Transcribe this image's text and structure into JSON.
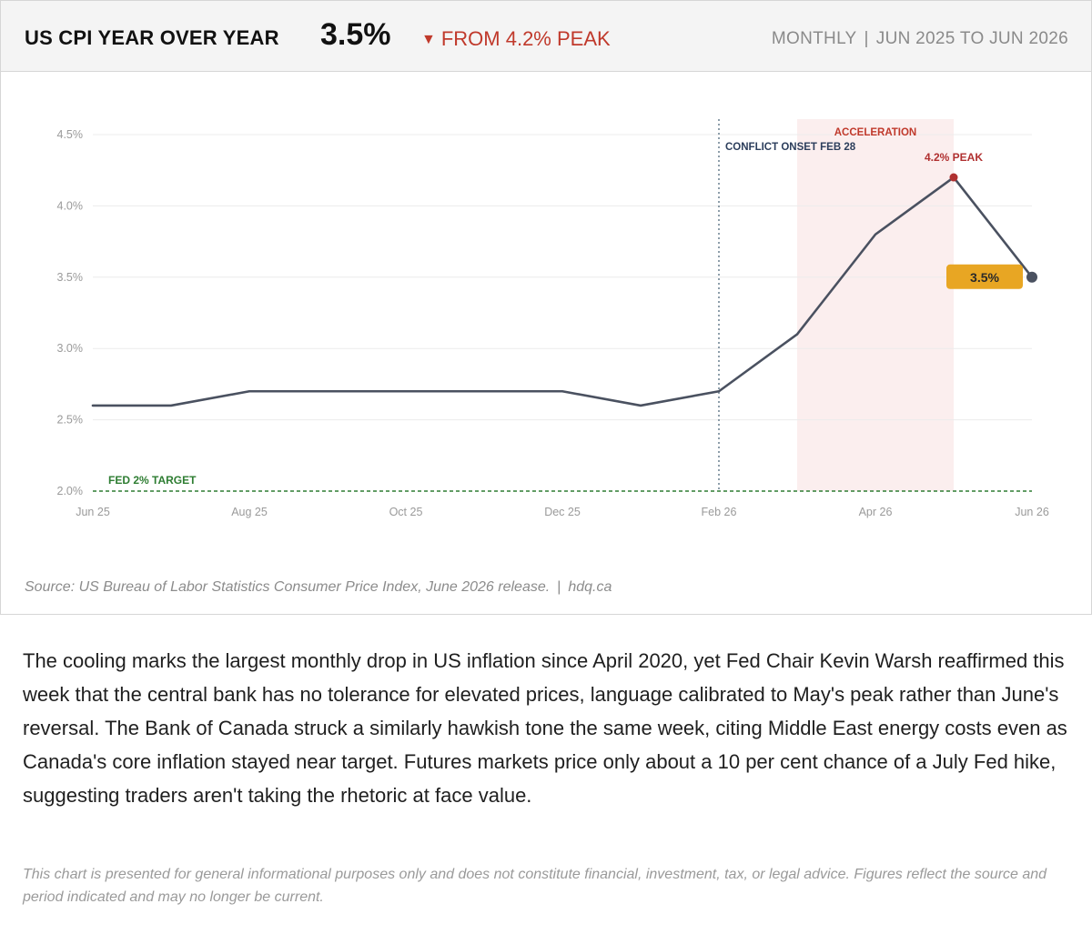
{
  "header": {
    "title": "US CPI YEAR OVER YEAR",
    "value": "3.5%",
    "change_arrow": "▼",
    "change_text": "FROM 4.2% PEAK",
    "frequency": "MONTHLY",
    "separator": "|",
    "period": "JUN 2025 TO JUN 2026"
  },
  "chart_data": {
    "type": "line",
    "title": "US CPI YEAR OVER YEAR",
    "xlabel": "",
    "ylabel": "",
    "x": [
      "2025-06",
      "2025-07",
      "2025-08",
      "2025-09",
      "2025-10",
      "2025-11",
      "2025-12",
      "2026-01",
      "2026-02",
      "2026-03",
      "2026-04",
      "2026-05",
      "2026-06"
    ],
    "tick_labels": [
      "Jun 25",
      "Aug 25",
      "Oct 25",
      "Dec 25",
      "Feb 26",
      "Apr 26",
      "Jun 26"
    ],
    "tick_indices": [
      0,
      2,
      4,
      6,
      8,
      10,
      12
    ],
    "values": [
      2.6,
      2.6,
      2.7,
      2.7,
      2.7,
      2.7,
      2.7,
      2.6,
      2.7,
      3.1,
      3.8,
      4.2,
      3.5
    ],
    "ylim": [
      2.0,
      4.5
    ],
    "yticks": [
      2.0,
      2.5,
      3.0,
      3.5,
      4.0,
      4.5
    ],
    "ytick_labels": [
      "2.0%",
      "2.5%",
      "3.0%",
      "3.5%",
      "4.0%",
      "4.5%"
    ],
    "grid": true,
    "annotations": {
      "target_line": {
        "value": 2.0,
        "label": "FED 2% TARGET",
        "color": "#2e7d32"
      },
      "event_line": {
        "x_index": 8,
        "label": "CONFLICT ONSET FEB 28",
        "color": "#2c3e5c"
      },
      "shaded_region": {
        "from_index": 9,
        "to_index": 11,
        "label": "ACCELERATION",
        "color": "#c0392b"
      },
      "peak": {
        "x_index": 11,
        "label": "4.2% PEAK",
        "color": "#b03030"
      },
      "last_value": {
        "x_index": 12,
        "label": "3.5%",
        "color": "#e8a623"
      }
    },
    "colors": {
      "line": "#4a5160",
      "grid": "#ececec",
      "axis_text": "#9a9a9a",
      "shade": "#fbeeee"
    }
  },
  "source": {
    "text": "Source: US Bureau of Labor Statistics Consumer Price Index, June 2026 release.",
    "separator": "|",
    "site": "hdq.ca"
  },
  "body_text": "The cooling marks the largest monthly drop in US inflation since April 2020, yet Fed Chair Kevin Warsh reaffirmed this week that the central bank has no tolerance for elevated prices, language calibrated to May's peak rather than June's reversal. The Bank of Canada struck a similarly hawkish tone the same week, citing Middle East energy costs even as Canada's core inflation stayed near target. Futures markets price only about a 10 per cent chance of a July Fed hike, suggesting traders aren't taking the rhetoric at face value.",
  "disclaimer": "This chart is presented for general informational purposes only and does not constitute financial, investment, tax, or legal advice. Figures reflect the source and period indicated and may no longer be current."
}
